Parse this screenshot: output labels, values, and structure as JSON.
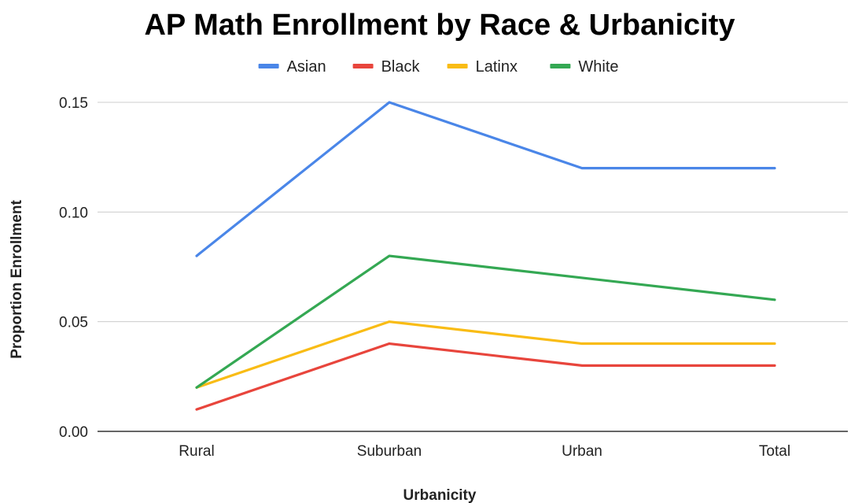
{
  "chart_data": {
    "type": "line",
    "title": "AP Math Enrollment by Race & Urbanicity",
    "xlabel": "Urbanicity",
    "ylabel": "Proportion Enrollment",
    "categories": [
      "Rural",
      "Suburban",
      "Urban",
      "Total"
    ],
    "ylim": [
      0,
      0.15
    ],
    "yticks": [
      "0.00",
      "0.05",
      "0.10",
      "0.15"
    ],
    "grid": true,
    "legend_position": "top",
    "series": [
      {
        "name": "Asian",
        "color": "#4a86e8",
        "values": [
          0.08,
          0.15,
          0.12,
          0.12
        ]
      },
      {
        "name": "Black",
        "color": "#e8453c",
        "values": [
          0.01,
          0.04,
          0.03,
          0.03
        ]
      },
      {
        "name": "Latinx",
        "color": "#f9bc15",
        "values": [
          0.02,
          0.05,
          0.04,
          0.04
        ]
      },
      {
        "name": "White",
        "color": "#34a853",
        "values": [
          0.02,
          0.08,
          0.07,
          0.06
        ]
      }
    ]
  }
}
